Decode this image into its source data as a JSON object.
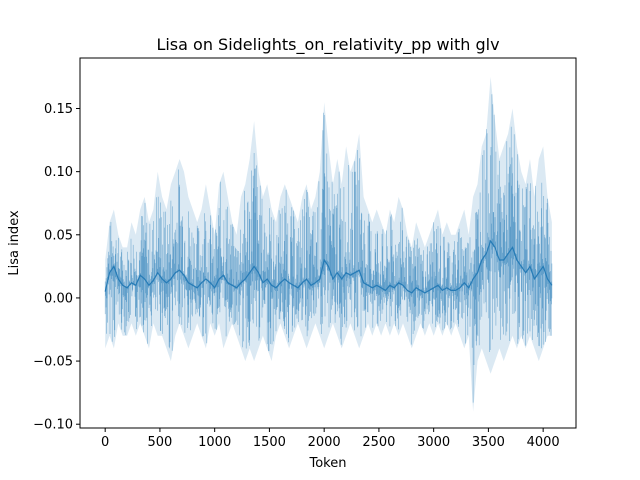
{
  "chart_data": {
    "type": "line",
    "title": "Lisa on Sidelights_on_relativity_pp with glv",
    "xlabel": "Token",
    "ylabel": "Lisa index",
    "xlim": [
      -230,
      4300
    ],
    "ylim": [
      -0.103,
      0.19
    ],
    "xticks": [
      0,
      500,
      1000,
      1500,
      2000,
      2500,
      3000,
      3500,
      4000
    ],
    "xtick_labels": [
      "0",
      "500",
      "1000",
      "1500",
      "2000",
      "2500",
      "3000",
      "3500",
      "4000"
    ],
    "yticks": [
      -0.1,
      -0.05,
      0.0,
      0.05,
      0.1,
      0.15
    ],
    "ytick_labels": [
      "−0.10",
      "−0.05",
      "0.00",
      "0.05",
      "0.10",
      "0.15"
    ],
    "grid": false,
    "line_color": "#1f77b4",
    "series": [
      {
        "x": [
          0,
          40,
          80,
          120,
          160,
          200,
          240,
          280,
          320,
          360,
          400,
          440,
          480,
          520,
          560,
          600,
          640,
          680,
          720,
          760,
          800,
          840,
          880,
          920,
          960,
          1000,
          1040,
          1080,
          1120,
          1160,
          1200,
          1240,
          1280,
          1320,
          1360,
          1400,
          1440,
          1480,
          1520,
          1560,
          1600,
          1640,
          1680,
          1720,
          1760,
          1800,
          1840,
          1880,
          1920,
          1960,
          2000,
          2040,
          2080,
          2120,
          2160,
          2200,
          2240,
          2280,
          2320,
          2360,
          2400,
          2440,
          2480,
          2520,
          2560,
          2600,
          2640,
          2680,
          2720,
          2760,
          2800,
          2840,
          2880,
          2920,
          2960,
          3000,
          3040,
          3080,
          3120,
          3160,
          3200,
          3240,
          3280,
          3320,
          3360,
          3400,
          3440,
          3480,
          3520,
          3560,
          3600,
          3640,
          3680,
          3720,
          3760,
          3800,
          3840,
          3880,
          3920,
          3960,
          4000,
          4040,
          4080
        ],
        "upper": [
          0.03,
          0.06,
          0.07,
          0.05,
          0.04,
          0.04,
          0.06,
          0.05,
          0.07,
          0.08,
          0.06,
          0.07,
          0.1,
          0.08,
          0.07,
          0.09,
          0.1,
          0.11,
          0.1,
          0.08,
          0.07,
          0.06,
          0.07,
          0.09,
          0.07,
          0.05,
          0.09,
          0.1,
          0.08,
          0.06,
          0.05,
          0.08,
          0.09,
          0.11,
          0.14,
          0.1,
          0.08,
          0.09,
          0.07,
          0.06,
          0.08,
          0.09,
          0.08,
          0.07,
          0.06,
          0.08,
          0.09,
          0.07,
          0.08,
          0.1,
          0.155,
          0.12,
          0.09,
          0.11,
          0.09,
          0.12,
          0.1,
          0.11,
          0.13,
          0.08,
          0.07,
          0.06,
          0.07,
          0.06,
          0.05,
          0.07,
          0.06,
          0.08,
          0.07,
          0.05,
          0.04,
          0.06,
          0.05,
          0.04,
          0.05,
          0.06,
          0.07,
          0.05,
          0.06,
          0.05,
          0.05,
          0.06,
          0.07,
          0.05,
          0.08,
          0.09,
          0.12,
          0.13,
          0.175,
          0.14,
          0.11,
          0.12,
          0.13,
          0.15,
          0.12,
          0.1,
          0.09,
          0.11,
          0.08,
          0.11,
          0.12,
          0.08,
          0.06
        ],
        "lower": [
          -0.04,
          -0.03,
          -0.04,
          -0.02,
          -0.03,
          -0.03,
          -0.02,
          -0.03,
          -0.02,
          -0.03,
          -0.04,
          -0.02,
          -0.03,
          -0.03,
          -0.04,
          -0.05,
          -0.03,
          -0.02,
          -0.03,
          -0.04,
          -0.03,
          -0.02,
          -0.03,
          -0.04,
          -0.02,
          -0.03,
          -0.02,
          -0.04,
          -0.03,
          -0.02,
          -0.03,
          -0.04,
          -0.05,
          -0.04,
          -0.05,
          -0.04,
          -0.03,
          -0.04,
          -0.05,
          -0.03,
          -0.02,
          -0.03,
          -0.04,
          -0.03,
          -0.02,
          -0.03,
          -0.04,
          -0.03,
          -0.02,
          -0.03,
          -0.04,
          -0.03,
          -0.02,
          -0.03,
          -0.04,
          -0.03,
          -0.02,
          -0.03,
          -0.04,
          -0.03,
          -0.02,
          -0.03,
          -0.02,
          -0.03,
          -0.02,
          -0.03,
          -0.02,
          -0.03,
          -0.02,
          -0.03,
          -0.04,
          -0.03,
          -0.02,
          -0.03,
          -0.02,
          -0.03,
          -0.02,
          -0.03,
          -0.02,
          -0.03,
          -0.02,
          -0.03,
          -0.04,
          -0.03,
          -0.09,
          -0.05,
          -0.04,
          -0.05,
          -0.06,
          -0.05,
          -0.04,
          -0.05,
          -0.04,
          -0.03,
          -0.04,
          -0.03,
          -0.04,
          -0.03,
          -0.04,
          -0.05,
          -0.04,
          -0.03,
          -0.03
        ],
        "mean": [
          0.005,
          0.02,
          0.025,
          0.015,
          0.01,
          0.008,
          0.012,
          0.01,
          0.018,
          0.015,
          0.01,
          0.014,
          0.02,
          0.015,
          0.012,
          0.015,
          0.02,
          0.022,
          0.018,
          0.012,
          0.01,
          0.008,
          0.012,
          0.015,
          0.012,
          0.008,
          0.015,
          0.018,
          0.012,
          0.01,
          0.008,
          0.012,
          0.015,
          0.02,
          0.025,
          0.02,
          0.012,
          0.015,
          0.01,
          0.008,
          0.012,
          0.015,
          0.012,
          0.01,
          0.008,
          0.012,
          0.015,
          0.01,
          0.012,
          0.015,
          0.03,
          0.025,
          0.015,
          0.02,
          0.015,
          0.02,
          0.018,
          0.02,
          0.022,
          0.012,
          0.01,
          0.008,
          0.01,
          0.008,
          0.006,
          0.01,
          0.008,
          0.012,
          0.01,
          0.006,
          0.004,
          0.008,
          0.006,
          0.004,
          0.006,
          0.008,
          0.01,
          0.006,
          0.008,
          0.006,
          0.006,
          0.008,
          0.012,
          0.008,
          0.015,
          0.02,
          0.03,
          0.035,
          0.045,
          0.04,
          0.03,
          0.03,
          0.035,
          0.04,
          0.03,
          0.025,
          0.02,
          0.025,
          0.015,
          0.02,
          0.025,
          0.015,
          0.01
        ]
      }
    ]
  }
}
